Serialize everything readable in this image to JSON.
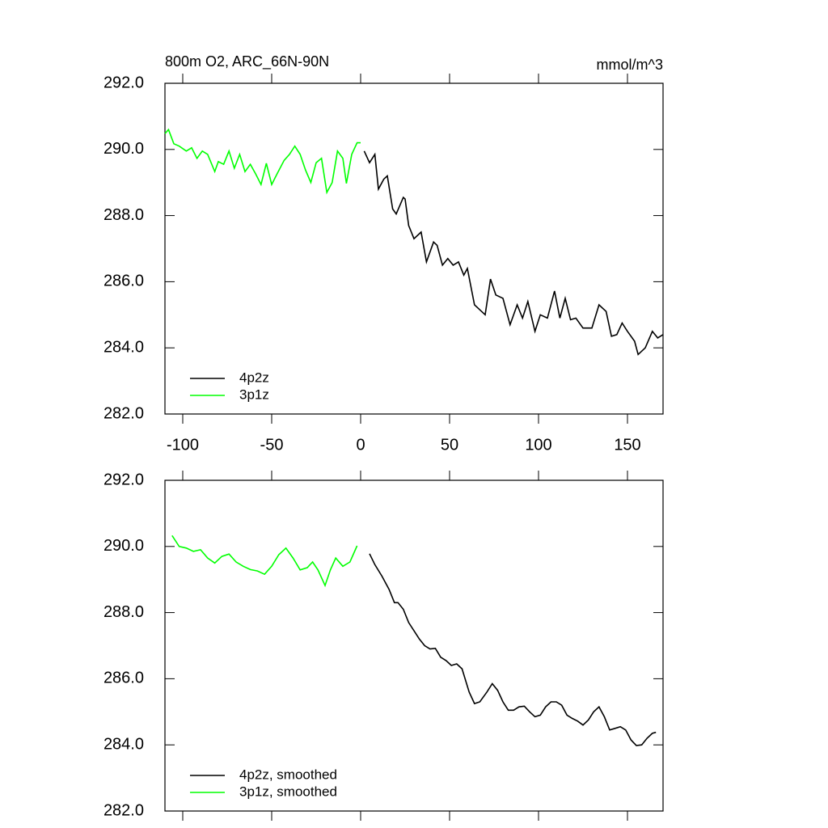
{
  "chart_data": [
    {
      "type": "line",
      "title": "800m O2, ARC_66N-90N",
      "units": "mmol/m^3",
      "xlim": [
        -110,
        170
      ],
      "xticks": [
        -100,
        -50,
        0,
        50,
        100,
        150
      ],
      "xtick_labels": true,
      "ylim": [
        282,
        292
      ],
      "yticks": [
        {
          "value": 282,
          "label": "282.0"
        },
        {
          "value": 284,
          "label": "284.0"
        },
        {
          "value": 286,
          "label": "286.0"
        },
        {
          "value": 288,
          "label": "288.0"
        },
        {
          "value": 290,
          "label": "290.0"
        },
        {
          "value": 292,
          "label": "292.0"
        }
      ],
      "legend": "lower left",
      "series": [
        {
          "name": "4p2z",
          "color": "#000000",
          "x": [
            2,
            5,
            8,
            10,
            13,
            15,
            18,
            20,
            24,
            25,
            27,
            30,
            34,
            37,
            41,
            43,
            46,
            49,
            52,
            55,
            58,
            60,
            64,
            66,
            70,
            73,
            76,
            80,
            84,
            88,
            91,
            94,
            98,
            101,
            105,
            109,
            112,
            115,
            118,
            121,
            125,
            130,
            134,
            138,
            141,
            144,
            147,
            150,
            154,
            156,
            160,
            164,
            167,
            170
          ],
          "values": [
            289.95,
            289.6,
            289.85,
            288.8,
            289.1,
            289.2,
            288.2,
            288.05,
            288.55,
            288.5,
            287.7,
            287.3,
            287.5,
            286.6,
            287.2,
            287.1,
            286.5,
            286.7,
            286.5,
            286.6,
            286.2,
            286.4,
            285.3,
            285.2,
            285.0,
            286.08,
            285.6,
            285.5,
            284.7,
            285.3,
            284.9,
            285.4,
            284.5,
            285.0,
            284.9,
            285.72,
            284.9,
            285.5,
            284.85,
            284.9,
            284.6,
            284.6,
            285.3,
            285.1,
            284.35,
            284.4,
            284.75,
            284.5,
            284.2,
            283.8,
            284.0,
            284.5,
            284.3,
            284.4
          ]
        },
        {
          "name": "3p1z",
          "color": "#00ff00",
          "x": [
            -110,
            -108,
            -105,
            -102,
            -98,
            -95,
            -92,
            -89,
            -86,
            -82,
            -80,
            -77,
            -74,
            -71,
            -68,
            -65,
            -62,
            -59,
            -56,
            -53,
            -50,
            -47,
            -43,
            -40,
            -37,
            -34,
            -31,
            -28,
            -25,
            -22,
            -19,
            -16,
            -13,
            -10,
            -8,
            -5,
            -2,
            0
          ],
          "values": [
            290.48,
            290.6,
            290.17,
            290.1,
            289.95,
            290.05,
            289.73,
            289.95,
            289.85,
            289.33,
            289.63,
            289.55,
            289.95,
            289.43,
            289.85,
            289.33,
            289.55,
            289.26,
            288.94,
            289.58,
            288.94,
            289.26,
            289.67,
            289.85,
            290.1,
            289.85,
            289.38,
            289.0,
            289.6,
            289.73,
            288.7,
            289.0,
            289.95,
            289.73,
            288.97,
            289.85,
            290.2,
            290.2
          ]
        }
      ]
    },
    {
      "type": "line",
      "xlim": [
        -110,
        170
      ],
      "xticks": [
        -100,
        -50,
        0,
        50,
        100,
        150
      ],
      "xtick_labels": false,
      "ylim": [
        282,
        292
      ],
      "yticks": [
        {
          "value": 282,
          "label": "282.0"
        },
        {
          "value": 284,
          "label": "284.0"
        },
        {
          "value": 286,
          "label": "286.0"
        },
        {
          "value": 288,
          "label": "288.0"
        },
        {
          "value": 290,
          "label": "290.0"
        },
        {
          "value": 292,
          "label": "292.0"
        }
      ],
      "legend": "lower left",
      "series": [
        {
          "name": "4p2z, smoothed",
          "color": "#000000",
          "x": [
            5,
            8,
            12,
            16,
            19,
            21,
            24,
            27,
            30,
            33,
            36,
            39,
            42,
            45,
            48,
            51,
            54,
            57,
            61,
            64,
            67,
            71,
            74,
            77,
            80,
            83,
            86,
            89,
            92,
            95,
            98,
            101,
            104,
            107,
            110,
            113,
            116,
            119,
            122,
            125,
            128,
            131,
            134,
            137,
            140,
            143,
            146,
            149,
            152,
            155,
            158,
            161,
            164,
            166
          ],
          "values": [
            289.78,
            289.45,
            289.1,
            288.7,
            288.3,
            288.3,
            288.1,
            287.7,
            287.45,
            287.2,
            287.0,
            286.9,
            286.92,
            286.65,
            286.55,
            286.4,
            286.45,
            286.3,
            285.6,
            285.25,
            285.3,
            285.6,
            285.85,
            285.65,
            285.3,
            285.05,
            285.05,
            285.15,
            285.17,
            285.0,
            284.85,
            284.9,
            285.15,
            285.3,
            285.3,
            285.2,
            284.9,
            284.8,
            284.72,
            284.6,
            284.75,
            285.0,
            285.15,
            284.85,
            284.45,
            284.5,
            284.55,
            284.45,
            284.15,
            283.98,
            284.0,
            284.2,
            284.35,
            284.38
          ]
        },
        {
          "name": "3p1z, smoothed",
          "color": "#00ff00",
          "x": [
            -106,
            -102,
            -98,
            -94,
            -90,
            -86,
            -82,
            -78,
            -74,
            -70,
            -66,
            -62,
            -58,
            -54,
            -50,
            -46,
            -42,
            -38,
            -34,
            -30,
            -27,
            -24,
            -20,
            -17,
            -14,
            -10,
            -6,
            -2
          ],
          "values": [
            290.33,
            290.0,
            289.95,
            289.85,
            289.9,
            289.65,
            289.5,
            289.7,
            289.77,
            289.53,
            289.4,
            289.3,
            289.26,
            289.16,
            289.4,
            289.75,
            289.95,
            289.65,
            289.29,
            289.36,
            289.53,
            289.29,
            288.82,
            289.29,
            289.65,
            289.4,
            289.53,
            290.02
          ]
        }
      ]
    }
  ]
}
